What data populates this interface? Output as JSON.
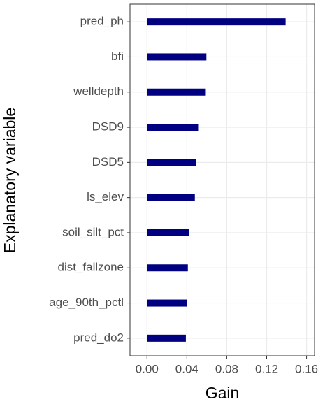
{
  "chart_data": {
    "type": "hbar",
    "xlabel": "Gain",
    "ylabel": "Explanatory variable",
    "categories": [
      "pred_ph",
      "bfi",
      "welldepth",
      "DSD9",
      "DSD5",
      "ls_elev",
      "soil_silt_pct",
      "dist_fallzone",
      "age_90th_pctl",
      "pred_do2"
    ],
    "values": [
      0.139,
      0.0596,
      0.059,
      0.052,
      0.049,
      0.048,
      0.042,
      0.041,
      0.04,
      0.039
    ],
    "color": "#000080",
    "xlim": [
      -0.017,
      0.168
    ],
    "xticks": [
      {
        "value": 0,
        "label": "0.00"
      },
      {
        "value": 0.04,
        "label": "0.04"
      },
      {
        "value": 0.08,
        "label": "0.08"
      },
      {
        "value": 0.12,
        "label": "0.12"
      },
      {
        "value": 0.16,
        "label": "0.16"
      }
    ],
    "grid": true
  }
}
